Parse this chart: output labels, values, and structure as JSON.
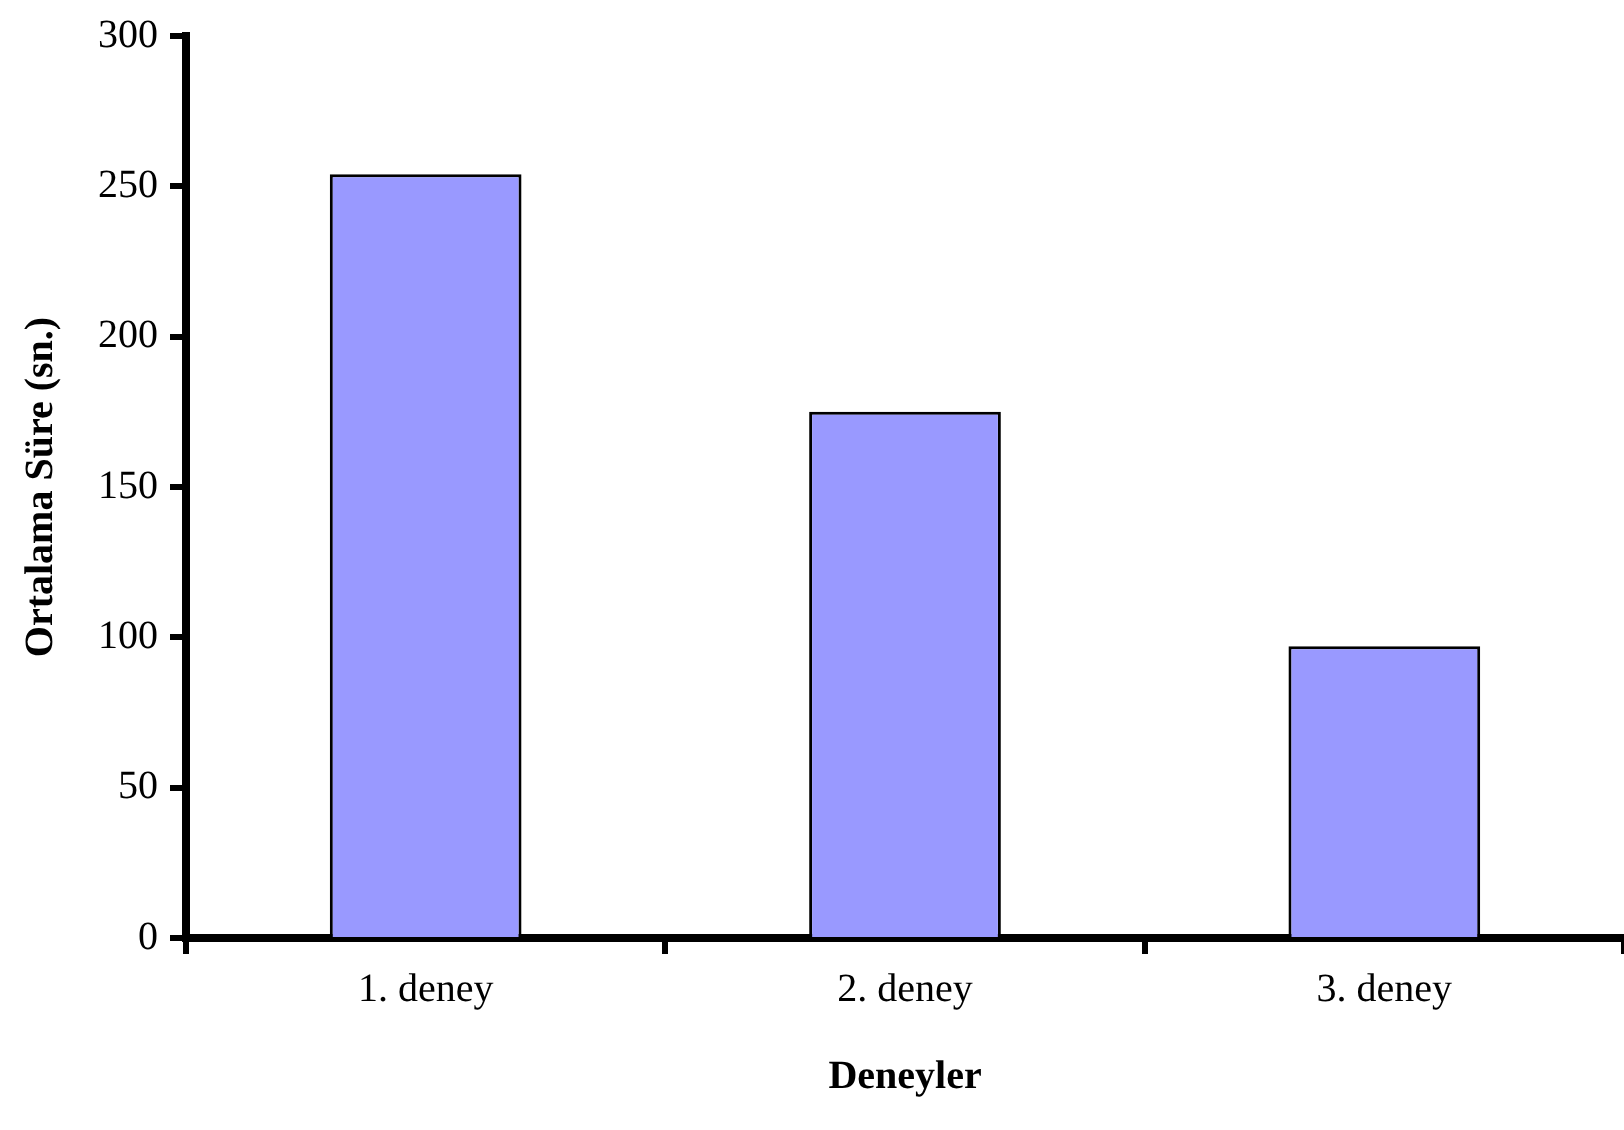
{
  "chart_data": {
    "type": "bar",
    "xlabel": "Deneyler",
    "ylabel": "Ortalama Süre (sn.)",
    "categories": [
      "1. deney",
      "2. deney",
      "3. deney"
    ],
    "values": [
      254,
      175,
      97
    ],
    "color": "#9999ff",
    "ylim": [
      0,
      300
    ],
    "yticks": [
      0,
      50,
      100,
      150,
      200,
      250,
      300
    ],
    "grid": false,
    "legend": false
  }
}
